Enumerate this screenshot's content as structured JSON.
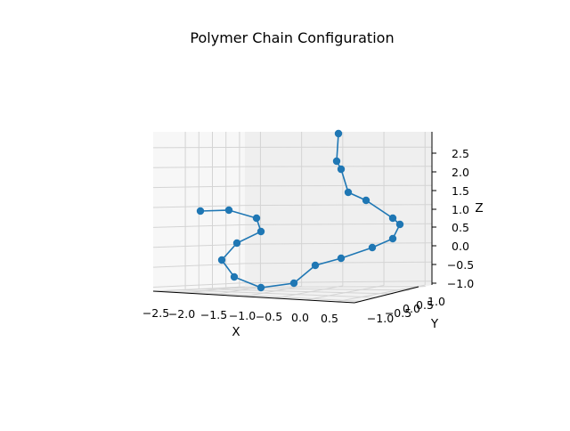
{
  "chart_data": {
    "type": "line3d",
    "title": "Polymer Chain Configuration",
    "xlabel": "X",
    "ylabel": "Y",
    "zlabel": "Z",
    "x_ticks": [
      "−2.5",
      "−2.0",
      "−1.5",
      "−1.0",
      "−0.5",
      "0.0",
      "0.5"
    ],
    "y_ticks": [
      "−1.0",
      "−0.5",
      "0.0",
      "0.5",
      "1.0"
    ],
    "z_ticks": [
      "−1.0",
      "−0.5",
      "0.0",
      "0.5",
      "1.0",
      "1.5",
      "2.0",
      "2.5"
    ],
    "xlim": [
      -2.5,
      0.8
    ],
    "ylim": [
      -1.2,
      1.2
    ],
    "zlim": [
      -1.1,
      2.9
    ],
    "grid": true,
    "marker": "circle",
    "line_color": "#1f77b4",
    "marker_color": "#1f77b4",
    "points": [
      {
        "x": 0.2,
        "y": 0.9,
        "z": 2.9
      },
      {
        "x": 0.18,
        "y": 0.85,
        "z": 2.25
      },
      {
        "x": 0.25,
        "y": 0.75,
        "z": 2.05
      },
      {
        "x": 0.3,
        "y": 0.4,
        "z": 1.45
      },
      {
        "x": 0.55,
        "y": 0.2,
        "z": 1.25
      },
      {
        "x": 0.75,
        "y": 0.0,
        "z": 0.8
      },
      {
        "x": 0.8,
        "y": -0.2,
        "z": 0.6
      },
      {
        "x": 0.7,
        "y": -0.4,
        "z": 0.25
      },
      {
        "x": 0.45,
        "y": -0.6,
        "z": 0.05
      },
      {
        "x": 0.0,
        "y": -0.8,
        "z": -0.2
      },
      {
        "x": -0.3,
        "y": -0.9,
        "z": -0.4
      },
      {
        "x": -0.6,
        "y": -1.0,
        "z": -1.0
      },
      {
        "x": -1.1,
        "y": -0.9,
        "z": -1.1
      },
      {
        "x": -1.5,
        "y": -0.7,
        "z": -0.85
      },
      {
        "x": -1.7,
        "y": -0.4,
        "z": -0.4
      },
      {
        "x": -1.55,
        "y": -0.1,
        "z": 0.05
      },
      {
        "x": -1.3,
        "y": 0.2,
        "z": 0.35
      },
      {
        "x": -1.3,
        "y": 0.5,
        "z": 0.7
      },
      {
        "x": -1.6,
        "y": 0.7,
        "z": 0.95
      },
      {
        "x": -2.0,
        "y": 0.8,
        "z": 0.9
      }
    ]
  }
}
